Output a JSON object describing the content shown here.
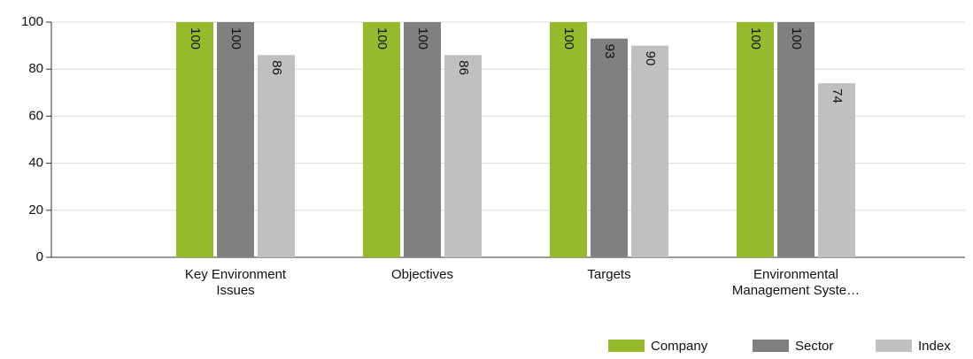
{
  "chart_data": {
    "type": "bar",
    "categories": [
      "Key Environment Issues",
      "Objectives",
      "Targets",
      "Environmental Management Syste…"
    ],
    "series": [
      {
        "name": "Company",
        "color": "#95bb2c",
        "values": [
          100,
          100,
          100,
          100
        ]
      },
      {
        "name": "Sector",
        "color": "#808080",
        "values": [
          100,
          100,
          93,
          100
        ]
      },
      {
        "name": "Index",
        "color": "#c0c0c0",
        "values": [
          86,
          86,
          90,
          74
        ]
      }
    ],
    "ylim": [
      0,
      100
    ],
    "yticks": [
      0,
      20,
      40,
      60,
      80,
      100
    ],
    "grid": true,
    "legend": "bottom-right"
  }
}
